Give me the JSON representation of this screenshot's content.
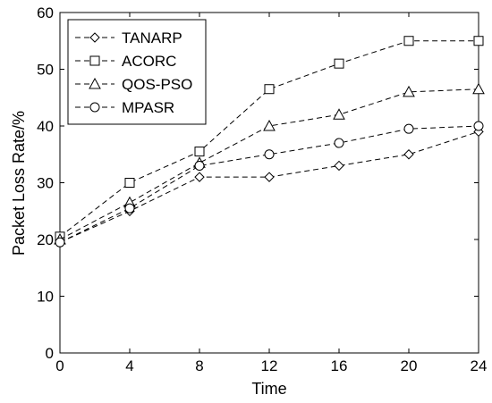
{
  "chart_data": {
    "type": "line",
    "xlabel": "Time",
    "ylabel": "Packet Loss Rate/%",
    "xlim": [
      0,
      24
    ],
    "ylim": [
      0,
      60
    ],
    "x_ticks": [
      "0",
      "4",
      "8",
      "12",
      "16",
      "20",
      "24"
    ],
    "y_ticks": [
      "0",
      "10",
      "20",
      "30",
      "40",
      "50",
      "60"
    ],
    "x": [
      0,
      4,
      8,
      12,
      16,
      20,
      24
    ],
    "grid": false,
    "legend_position": "top-left",
    "series": [
      {
        "name": "TANARP",
        "marker": "diamond",
        "values": [
          19.5,
          25,
          31,
          31,
          33,
          35,
          39
        ]
      },
      {
        "name": "ACORC",
        "marker": "square",
        "values": [
          20.5,
          30,
          35.5,
          46.5,
          51,
          55,
          55
        ]
      },
      {
        "name": "QOS-PSO",
        "marker": "triangle",
        "values": [
          20,
          26.5,
          33.5,
          40,
          42,
          46,
          46.5
        ]
      },
      {
        "name": "MPASR",
        "marker": "circle",
        "values": [
          19.5,
          25.5,
          33,
          35,
          37,
          39.5,
          40
        ]
      }
    ]
  }
}
